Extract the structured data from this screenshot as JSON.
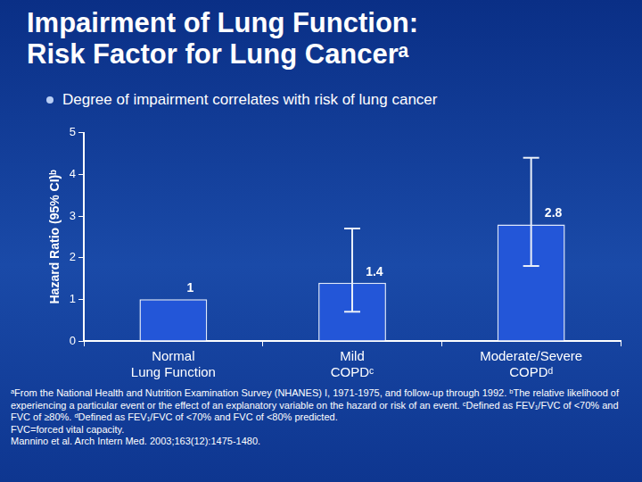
{
  "title": [
    "Impairment of Lung Function:",
    "Risk Factor for Lung Cancerᵃ"
  ],
  "bullets": [
    "Degree of impairment correlates with risk of lung cancer"
  ],
  "chart_data": {
    "type": "bar",
    "categories": [
      "Normal Lung Function",
      "Mild COPDᶜ",
      "Moderate/Severe COPDᵈ"
    ],
    "values": [
      1,
      1.4,
      2.8
    ],
    "error_low": [
      null,
      0.7,
      1.8
    ],
    "error_high": [
      null,
      2.7,
      4.4
    ],
    "ylabel": "Hazard Ratio (95% CI)ᵇ",
    "color": "#2356d8",
    "ylim": [
      0,
      5
    ],
    "yticks": [
      0,
      1,
      2,
      3,
      4,
      5
    ],
    "grid": false,
    "data_labels": true
  },
  "footnotes": [
    "ᵃFrom the National Health and Nutrition Examination Survey (NHANES) I, 1971-1975, and follow-up through 1992. ᵇThe relative likelihood of experiencing a particular event or the effect of an explanatory variable on the hazard or risk of an event. ᶜDefined as FEV₁/FVC of <70% and FVC of ≥80%. ᵈDefined as FEV₁/FVC of <70% and FVC of <80% predicted.",
    "FVC=forced vital capacity.",
    "Mannino et al. Arch Intern Med. 2003;163(12):1475-1480."
  ]
}
